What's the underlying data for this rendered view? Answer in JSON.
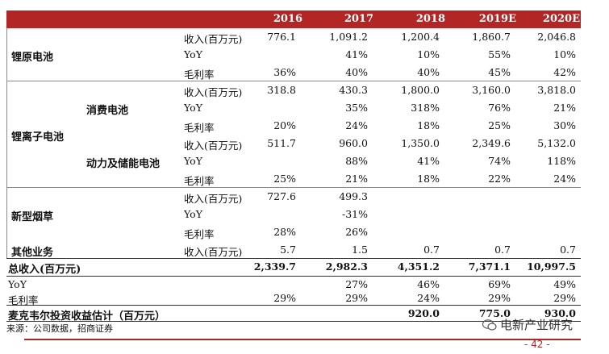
{
  "header": {
    "years": [
      "2016",
      "2017",
      "2018",
      "2019E",
      "2020E"
    ]
  },
  "segments": {
    "li_primary": {
      "name": "锂原电池",
      "rows": [
        {
          "metric": "收入(百万元)",
          "values": [
            "776.1",
            "1,091.2",
            "1,200.4",
            "1,860.7",
            "2,046.8"
          ]
        },
        {
          "metric": "YoY",
          "values": [
            "",
            "41%",
            "10%",
            "55%",
            "10%"
          ]
        },
        {
          "metric": "毛利率",
          "values": [
            "36%",
            "40%",
            "40%",
            "45%",
            "42%"
          ]
        }
      ]
    },
    "li_ion": {
      "name": "锂离子电池",
      "consumer": {
        "name": "消费电池",
        "rows": [
          {
            "metric": "收入(百万元)",
            "values": [
              "318.8",
              "430.3",
              "1,800.0",
              "3,160.0",
              "3,818.0"
            ]
          },
          {
            "metric": "YoY",
            "values": [
              "",
              "35%",
              "318%",
              "76%",
              "21%"
            ]
          },
          {
            "metric": "毛利率",
            "values": [
              "20%",
              "24%",
              "18%",
              "25%",
              "30%"
            ]
          }
        ]
      },
      "power": {
        "name": "动力及储能电池",
        "rows": [
          {
            "metric": "收入(百万元)",
            "values": [
              "511.7",
              "960.0",
              "1,350.0",
              "2,349.6",
              "5,132.0"
            ]
          },
          {
            "metric": "YoY",
            "values": [
              "",
              "88%",
              "41%",
              "74%",
              "118%"
            ]
          },
          {
            "metric": "毛利率",
            "values": [
              "25%",
              "21%",
              "18%",
              "22%",
              "24%"
            ]
          }
        ]
      }
    },
    "e_cig": {
      "name": "新型烟草",
      "rows": [
        {
          "metric": "收入(百万元)",
          "values": [
            "727.6",
            "499.3",
            "",
            "",
            ""
          ]
        },
        {
          "metric": "YoY",
          "values": [
            "",
            "-31%",
            "",
            "",
            ""
          ]
        },
        {
          "metric": "毛利率",
          "values": [
            "28%",
            "26%",
            "",
            "",
            ""
          ]
        }
      ]
    },
    "other": {
      "name": "其他业务",
      "rows": [
        {
          "metric": "收入(百万元)",
          "values": [
            "5.7",
            "1.5",
            "0.7",
            "0.7",
            "0.7"
          ]
        }
      ]
    }
  },
  "totals": {
    "revenue_label": "总收入(百万元)",
    "revenue": [
      "2,339.7",
      "2,982.3",
      "4,351.2",
      "7,371.1",
      "10,997.5"
    ],
    "yoy_label": "YoY",
    "yoy": [
      "",
      "27%",
      "46%",
      "69%",
      "49%"
    ],
    "margin_label": "毛利率",
    "margin": [
      "29%",
      "29%",
      "24%",
      "29%",
      "29%"
    ],
    "invest_label": "麦克韦尔投资收益估计（百万元）",
    "invest": [
      "",
      "",
      "920.0",
      "775.0",
      "930.0"
    ]
  },
  "footer": {
    "source": "来源：公司数据，招商证券",
    "watermark": "电新产业研究",
    "page": "- 42 -"
  },
  "colors": {
    "accent": "#b22626"
  }
}
